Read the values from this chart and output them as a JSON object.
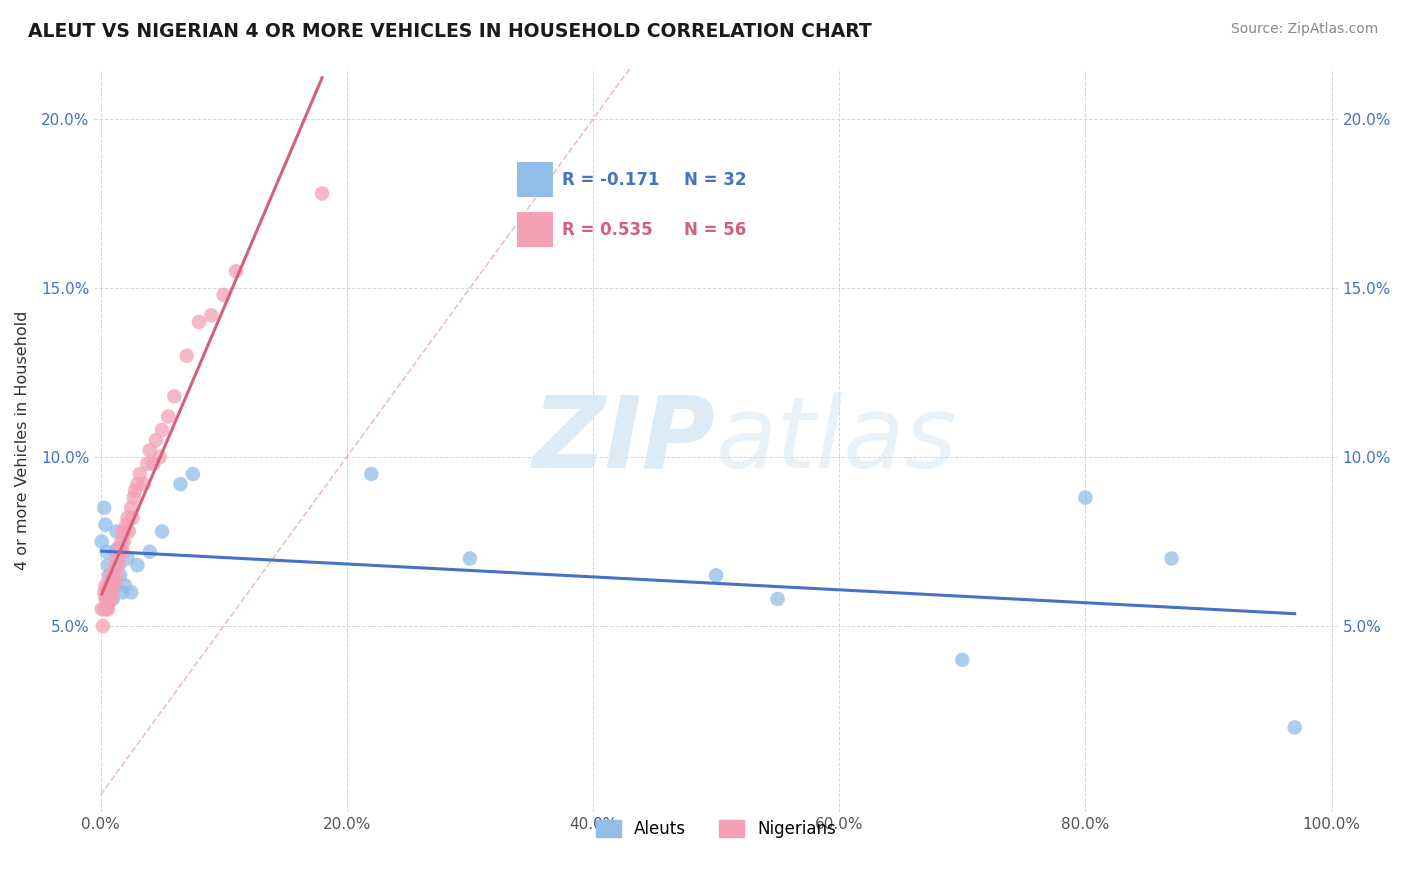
{
  "title": "ALEUT VS NIGERIAN 4 OR MORE VEHICLES IN HOUSEHOLD CORRELATION CHART",
  "source": "Source: ZipAtlas.com",
  "ylabel": "4 or more Vehicles in Household",
  "xlim": [
    -0.005,
    1.005
  ],
  "ylim": [
    -0.005,
    0.215
  ],
  "xticks": [
    0.0,
    0.2,
    0.4,
    0.6,
    0.8,
    1.0
  ],
  "xticklabels": [
    "0.0%",
    "20.0%",
    "40.0%",
    "60.0%",
    "80.0%",
    "100.0%"
  ],
  "yticks": [
    0.05,
    0.1,
    0.15,
    0.2
  ],
  "yticklabels": [
    "5.0%",
    "10.0%",
    "15.0%",
    "20.0%"
  ],
  "aleut_color": "#92BDE8",
  "nigerian_color": "#F4A0B5",
  "aleut_line_color": "#4472C4",
  "nigerian_line_color": "#D4607A",
  "R_aleut": -0.171,
  "N_aleut": 32,
  "R_nigerian": 0.535,
  "N_nigerian": 56,
  "legend_labels": [
    "Aleuts",
    "Nigerians"
  ],
  "watermark_zip": "ZIP",
  "watermark_atlas": "atlas",
  "aleut_x": [
    0.001,
    0.003,
    0.004,
    0.005,
    0.006,
    0.007,
    0.008,
    0.009,
    0.01,
    0.011,
    0.012,
    0.013,
    0.014,
    0.015,
    0.016,
    0.018,
    0.02,
    0.022,
    0.025,
    0.03,
    0.04,
    0.05,
    0.065,
    0.075,
    0.22,
    0.3,
    0.5,
    0.55,
    0.7,
    0.8,
    0.87,
    0.97
  ],
  "aleut_y": [
    0.075,
    0.085,
    0.08,
    0.072,
    0.068,
    0.065,
    0.063,
    0.06,
    0.058,
    0.062,
    0.072,
    0.078,
    0.073,
    0.068,
    0.065,
    0.06,
    0.062,
    0.07,
    0.06,
    0.068,
    0.072,
    0.078,
    0.092,
    0.095,
    0.095,
    0.07,
    0.065,
    0.058,
    0.04,
    0.088,
    0.07,
    0.02
  ],
  "nigerian_x": [
    0.001,
    0.002,
    0.003,
    0.003,
    0.004,
    0.004,
    0.005,
    0.005,
    0.006,
    0.006,
    0.007,
    0.007,
    0.008,
    0.008,
    0.009,
    0.009,
    0.01,
    0.01,
    0.011,
    0.012,
    0.012,
    0.013,
    0.013,
    0.014,
    0.015,
    0.015,
    0.016,
    0.017,
    0.018,
    0.018,
    0.019,
    0.02,
    0.021,
    0.022,
    0.023,
    0.025,
    0.026,
    0.027,
    0.028,
    0.03,
    0.032,
    0.035,
    0.038,
    0.04,
    0.043,
    0.045,
    0.048,
    0.05,
    0.055,
    0.06,
    0.07,
    0.08,
    0.09,
    0.1,
    0.11,
    0.18
  ],
  "nigerian_y": [
    0.055,
    0.05,
    0.055,
    0.06,
    0.058,
    0.062,
    0.055,
    0.058,
    0.055,
    0.06,
    0.057,
    0.062,
    0.06,
    0.065,
    0.058,
    0.063,
    0.06,
    0.065,
    0.063,
    0.068,
    0.063,
    0.065,
    0.07,
    0.068,
    0.07,
    0.072,
    0.073,
    0.075,
    0.072,
    0.078,
    0.075,
    0.078,
    0.08,
    0.082,
    0.078,
    0.085,
    0.082,
    0.088,
    0.09,
    0.092,
    0.095,
    0.092,
    0.098,
    0.102,
    0.098,
    0.105,
    0.1,
    0.108,
    0.112,
    0.118,
    0.13,
    0.14,
    0.142,
    0.148,
    0.155,
    0.178
  ],
  "diag_line_x": [
    0.0,
    0.43
  ],
  "diag_line_y": [
    0.0,
    0.215
  ]
}
